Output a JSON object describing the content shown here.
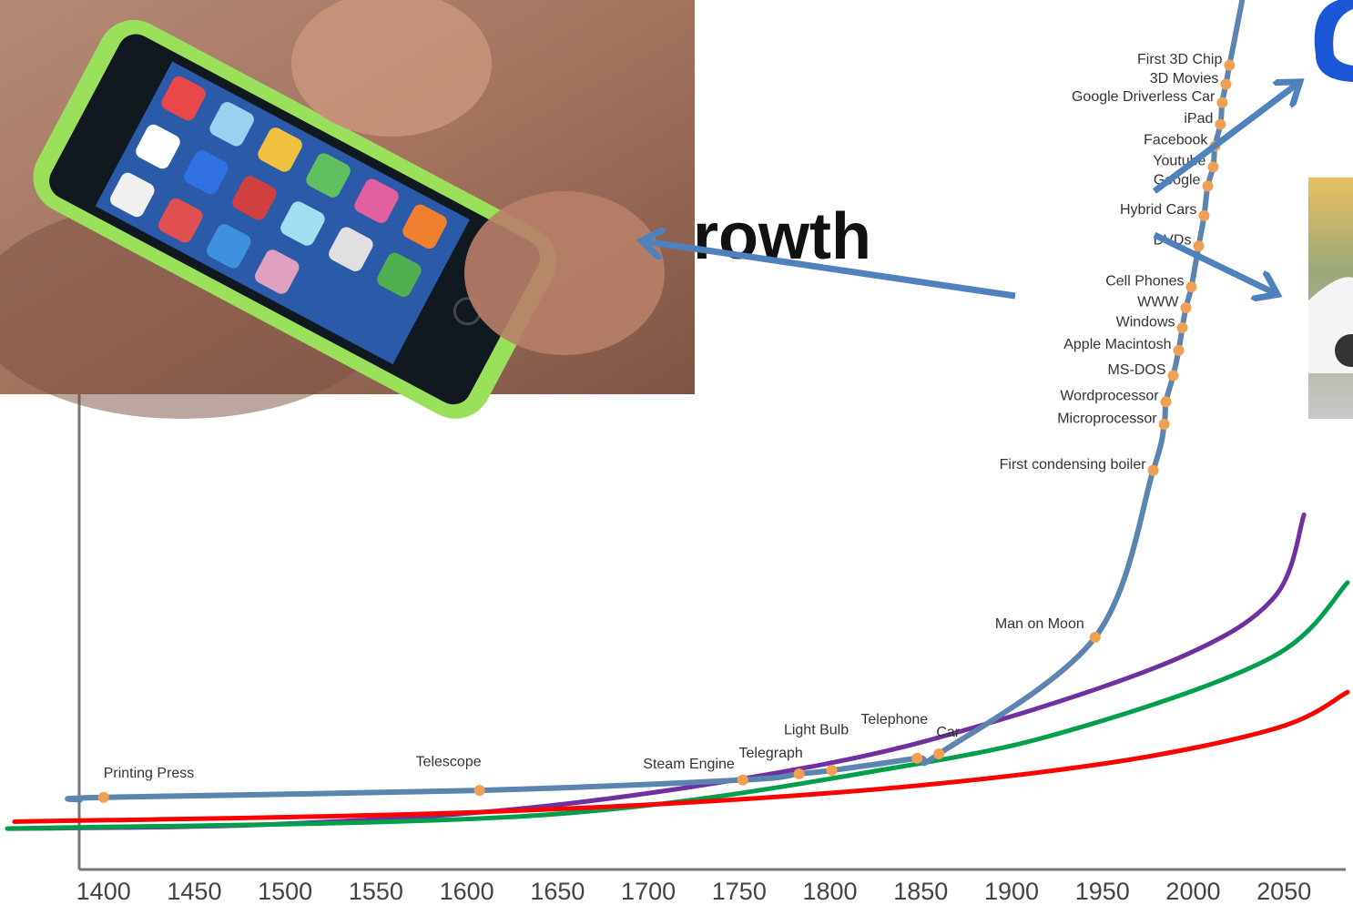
{
  "chart_data": {
    "type": "line",
    "title": "Growth",
    "xlim": [
      1345,
      2088
    ],
    "ylim": [
      0,
      100
    ],
    "xticks": [
      1400,
      1450,
      1500,
      1550,
      1600,
      1650,
      1700,
      1750,
      1800,
      1850,
      1900,
      1950,
      2000,
      2050
    ],
    "series": [
      {
        "color": "#5b85b0",
        "x": [
          1387,
          1400,
          1607,
          1752,
          1783,
          1801,
          1848,
          1860,
          1946,
          1978,
          1984,
          1985,
          1989,
          1992,
          1994,
          1996,
          1999,
          2003,
          2006,
          2008,
          2011,
          2012,
          2015,
          2016,
          2018,
          2020,
          2027
        ],
        "values": [
          8.0,
          8.3,
          9.1,
          10.3,
          11.0,
          11.4,
          12.8,
          13.3,
          26.7,
          45.9,
          51.2,
          53.8,
          56.8,
          59.7,
          62.3,
          64.6,
          67.0,
          71.7,
          75.2,
          78.6,
          80.8,
          83.2,
          85.7,
          88.2,
          90.3,
          92.5,
          100
        ],
        "labels": [
          null,
          "Printing Press",
          "Telescope",
          "Steam Engine",
          "Telegraph",
          "Light Bulb",
          "Telephone",
          "Car",
          "Man on Moon",
          "First condensing boiler",
          "Microprocessor",
          "Wordprocessor",
          "MS-DOS",
          "Apple Macintosh",
          "Windows",
          "WWW",
          "Cell Phones",
          "DVDs",
          "Hybrid Cars",
          "Google",
          "Youtube",
          "Facebook",
          "iPad",
          "Google Driverless Car",
          "3D Movies",
          "First 3D Chip",
          null
        ]
      },
      {
        "color": "#7030a0",
        "x": [
          1348,
          1494,
          1644,
          1794,
          1895,
          1995,
          2045,
          2061
        ],
        "values": [
          4.7,
          5.2,
          7.3,
          12.0,
          17.3,
          24.6,
          31.4,
          40.8
        ]
      },
      {
        "color": "#00a04a",
        "x": [
          1347,
          1644,
          1844,
          1945,
          2045,
          2085
        ],
        "values": [
          4.7,
          6.3,
          12.0,
          16.8,
          24.6,
          33.0
        ]
      },
      {
        "color": "#ff0000",
        "x": [
          1351,
          1594,
          1794,
          1945,
          2045,
          2085
        ],
        "values": [
          5.5,
          6.5,
          8.7,
          12.0,
          16.2,
          20.4
        ]
      }
    ]
  }
}
